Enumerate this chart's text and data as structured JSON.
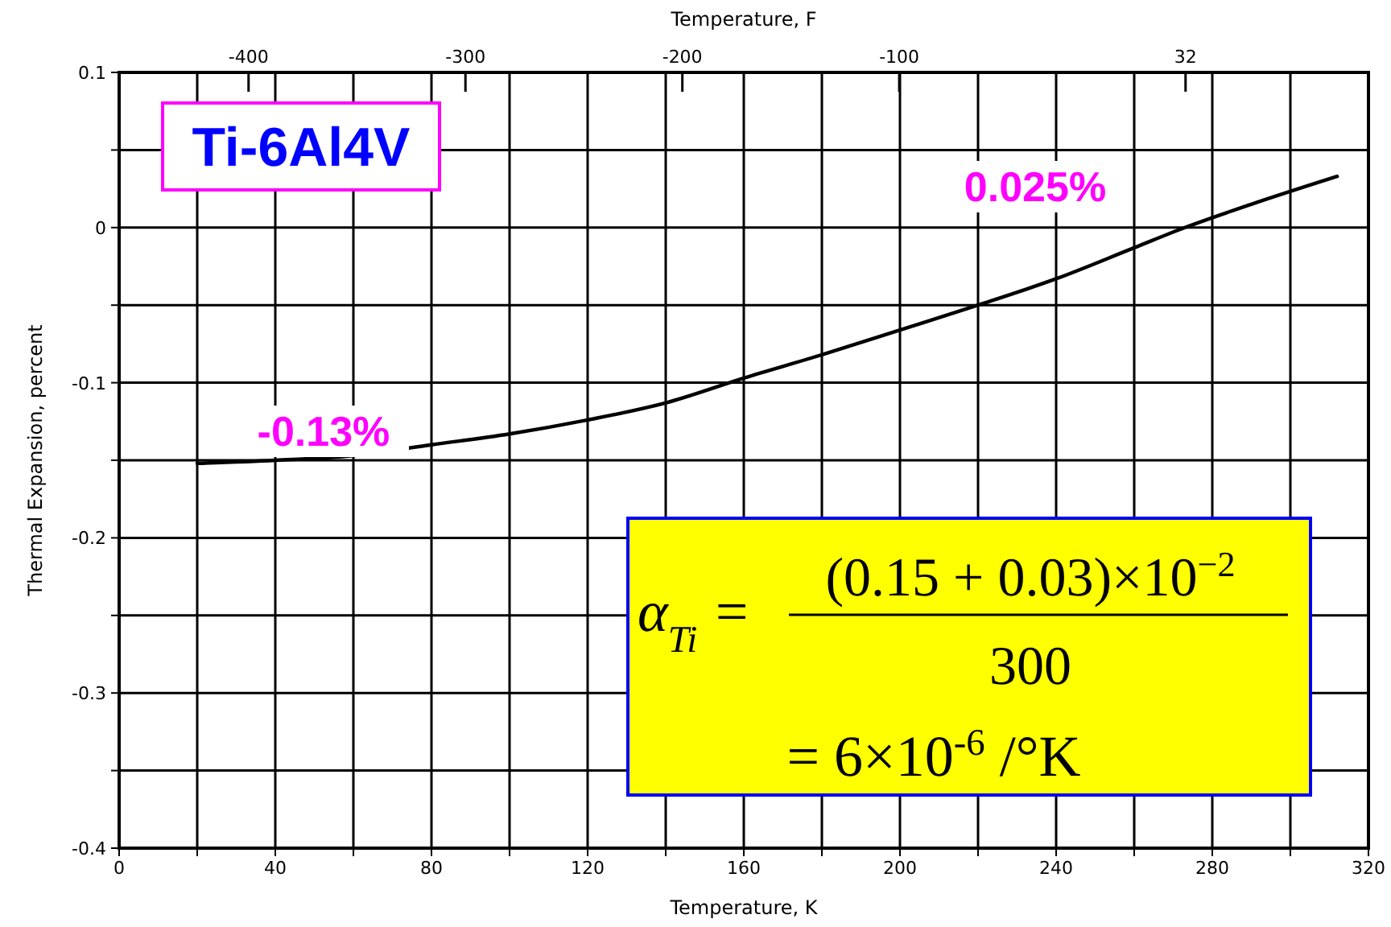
{
  "chart_data": {
    "type": "line",
    "title": "Ti-6Al4V",
    "xlabel": "Temperature, K",
    "ylabel": "Thermal Expansion, percent",
    "x2label": "Temperature, F",
    "x": [
      20,
      40,
      60,
      80,
      100,
      120,
      140,
      160,
      180,
      200,
      220,
      240,
      260,
      273,
      290,
      312
    ],
    "series": [
      {
        "color": "#000000",
        "values": [
          -0.152,
          -0.15,
          -0.147,
          -0.14,
          -0.133,
          -0.124,
          -0.113,
          -0.097,
          -0.082,
          -0.066,
          -0.05,
          -0.033,
          -0.013,
          0,
          0.015,
          0.033
        ]
      }
    ],
    "xlim": [
      0,
      320
    ],
    "xticks": [
      0,
      {
        "value": 20,
        "label": null
      },
      40,
      {
        "value": 60,
        "label": null
      },
      80,
      {
        "value": 100,
        "label": null
      },
      120,
      {
        "value": 140,
        "label": null
      },
      160,
      {
        "value": 180,
        "label": null
      },
      200,
      {
        "value": 220,
        "label": null
      },
      240,
      {
        "value": 260,
        "label": null
      },
      280,
      {
        "value": 300,
        "label": null
      },
      320
    ],
    "ylim": [
      -0.4,
      0.1
    ],
    "yticks": [
      -0.4,
      {
        "value": -0.35,
        "label": null
      },
      -0.3,
      {
        "value": -0.25,
        "label": null
      },
      -0.2,
      {
        "value": -0.15,
        "label": null
      },
      -0.1,
      {
        "value": -0.05,
        "label": null
      },
      0,
      {
        "value": 0.05,
        "label": null
      },
      0.1
    ],
    "x2lim": [
      -459.67,
      116.33
    ],
    "x2ticks": [
      -400,
      -300,
      -200,
      -100,
      32
    ],
    "grid": true,
    "line_style": "solid",
    "annotations": [
      "0.025%",
      "-0.13%",
      "α$_{Ti}$ =",
      "(0.15 + 0.03)×10$^{−2}$",
      "300",
      "= 6×10$^{-6}$ /°K"
    ]
  }
}
